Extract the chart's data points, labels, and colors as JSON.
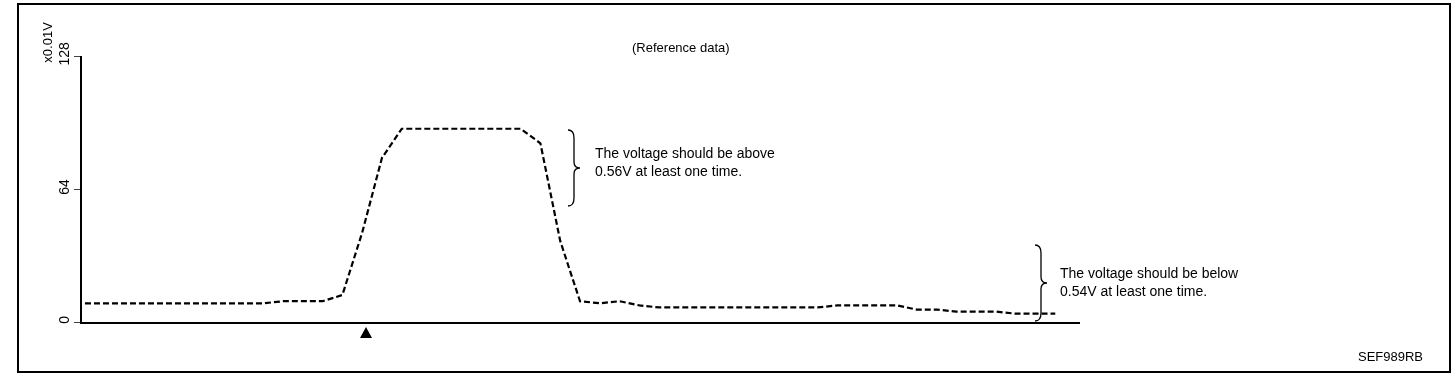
{
  "chart_data": {
    "type": "line",
    "title": "(Reference data)",
    "ylabel": "x0.01V",
    "categories": [
      null,
      null,
      null,
      null,
      null,
      null,
      null,
      null,
      null,
      null,
      null,
      null,
      null,
      null,
      null,
      null,
      null,
      null,
      null,
      null,
      null,
      null,
      null,
      null,
      null,
      null,
      null,
      null,
      null,
      null,
      null,
      null,
      null,
      null,
      null,
      null,
      null,
      null,
      null,
      null,
      null,
      null,
      null,
      null,
      null,
      null,
      null,
      null,
      null,
      null
    ],
    "series": [
      {
        "color": "#000000",
        "values": [
          9,
          9,
          9,
          9,
          9,
          9,
          9,
          9,
          9,
          9,
          10,
          10,
          10,
          13,
          43,
          79,
          93,
          93,
          93,
          93,
          93,
          93,
          93,
          86,
          39,
          10,
          9,
          10,
          8,
          7,
          7,
          7,
          7,
          7,
          7,
          7,
          7,
          7,
          8,
          8,
          8,
          8,
          6,
          6,
          5,
          5,
          5,
          4,
          4,
          4
        ]
      }
    ],
    "ylim": [
      0,
      128
    ],
    "yticks": [
      0,
      64,
      128
    ],
    "grid": false,
    "marker": "none",
    "line_style": "dashed",
    "annotations": [
      "The voltage should be above\n0.56V at least one time.",
      "The voltage should be below\n0.54V at least one time.",
      "SEF989RB"
    ]
  }
}
